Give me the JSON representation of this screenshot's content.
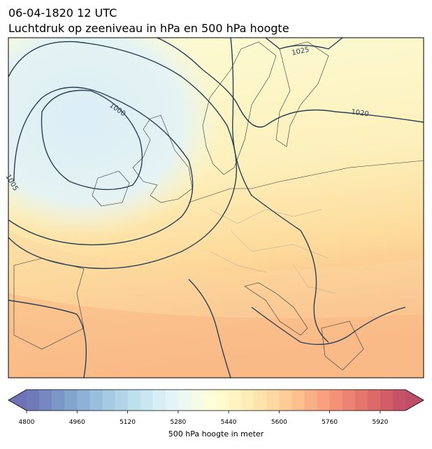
{
  "header": {
    "title": "06-04-1820 12 UTC",
    "subtitle": "Luchtdruk op zeeniveau in hPa en 500 hPa hoogte"
  },
  "contour_labels": [
    "1025",
    "1020",
    "1000",
    "1005"
  ],
  "colorbar": {
    "label": "500 hPa hoogte in meter",
    "lim": [
      4800,
      6000
    ],
    "step": 40,
    "ticks": [
      4800,
      4960,
      5120,
      5280,
      5440,
      5600,
      5760,
      5920
    ],
    "colormap": [
      "#313695",
      "#4575b4",
      "#74add1",
      "#abd9e9",
      "#e0f3f8",
      "#ffffbf",
      "#fee090",
      "#fdae61",
      "#f46d43",
      "#d73027",
      "#a50026"
    ],
    "alpha": 0.7
  }
}
